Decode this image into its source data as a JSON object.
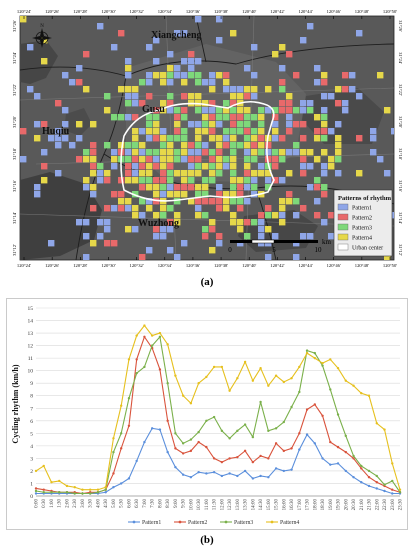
{
  "map": {
    "top_ticks": [
      "120°24'",
      "120°26'",
      "120°28'",
      "120°30'",
      "120°32'",
      "120°34'",
      "120°36'",
      "120°38'",
      "120°40'",
      "120°42'",
      "120°44'",
      "120°46'",
      "120°48'",
      "120°50'"
    ],
    "side_ticks": [
      "31°26'",
      "31°24'",
      "31°22'",
      "31°20'",
      "31°18'",
      "31°16'",
      "31°14'",
      "31°12'"
    ],
    "place_names": {
      "xiangcheng": "Xiangcheng",
      "huqiu": "Huqiu",
      "gusu": "Gusu",
      "wuzhong": "Wuzhong"
    },
    "legend": {
      "title": "Patterns of rhythm",
      "items": [
        {
          "label": "Pattern1",
          "color": "#8fa6e8"
        },
        {
          "label": "Pattern2",
          "color": "#e8696a"
        },
        {
          "label": "Pattern3",
          "color": "#7ed87a"
        },
        {
          "label": "Pattern4",
          "color": "#e6d84a"
        },
        {
          "label": "Urban center",
          "color": "#ffffff"
        }
      ]
    },
    "scalebar": {
      "ticks": [
        "0",
        "5",
        "10"
      ],
      "unit": "km"
    },
    "background_color": "#5b5b5b"
  },
  "panel_labels": {
    "a": "(a)",
    "b": "(b)"
  },
  "chart_data": {
    "type": "line",
    "title": "",
    "xlabel": "",
    "ylabel": "Cycling rhythm (km/h)",
    "ylim": [
      0,
      15
    ],
    "yticks": [
      "0",
      "1",
      "2",
      "3",
      "4",
      "5",
      "6",
      "7",
      "8",
      "9",
      "10",
      "11",
      "12",
      "13",
      "14",
      "15"
    ],
    "grid": true,
    "legend": "bottom",
    "x": [
      "0:00",
      "0:30",
      "1:00",
      "1:30",
      "2:00",
      "2:30",
      "3:00",
      "3:30",
      "4:00",
      "4:30",
      "5:00",
      "5:30",
      "6:00",
      "6:30",
      "7:00",
      "7:30",
      "8:00",
      "8:30",
      "9:00",
      "9:30",
      "10:00",
      "10:30",
      "11:00",
      "11:30",
      "12:00",
      "12:30",
      "13:00",
      "13:30",
      "14:00",
      "14:30",
      "15:00",
      "15:30",
      "16:00",
      "16:30",
      "17:00",
      "17:30",
      "18:00",
      "18:30",
      "19:00",
      "19:30",
      "20:00",
      "20:30",
      "21:00",
      "21:30",
      "22:00",
      "22:30",
      "23:00",
      "23:30"
    ],
    "series": [
      {
        "name": "Pattern1",
        "color": "#5b8fdc",
        "values": [
          0.2,
          0.2,
          0.2,
          0.2,
          0.2,
          0.2,
          0.2,
          0.2,
          0.2,
          0.3,
          0.7,
          1.0,
          1.4,
          2.8,
          4.3,
          5.4,
          5.3,
          3.5,
          2.3,
          1.7,
          1.5,
          1.9,
          1.8,
          1.9,
          1.6,
          1.8,
          1.6,
          2.0,
          1.4,
          1.6,
          1.5,
          2.2,
          2.0,
          2.1,
          3.7,
          4.9,
          4.2,
          3.0,
          2.5,
          2.6,
          2.0,
          1.5,
          1.1,
          0.8,
          0.6,
          0.4,
          0.2,
          0.2
        ]
      },
      {
        "name": "Pattern2",
        "color": "#d9533c",
        "values": [
          0.6,
          0.5,
          0.4,
          0.3,
          0.3,
          0.3,
          0.2,
          0.3,
          0.3,
          0.5,
          1.8,
          3.8,
          5.6,
          10.9,
          12.7,
          11.8,
          10.1,
          6.0,
          3.8,
          3.4,
          3.6,
          4.3,
          3.9,
          3.0,
          2.7,
          3.0,
          3.1,
          3.6,
          2.7,
          3.2,
          3.0,
          4.2,
          3.6,
          3.8,
          5.0,
          6.9,
          7.3,
          6.4,
          4.3,
          3.9,
          3.5,
          3.0,
          2.2,
          1.5,
          1.1,
          0.8,
          0.5,
          0.3
        ]
      },
      {
        "name": "Pattern3",
        "color": "#7ab04a",
        "values": [
          0.4,
          0.3,
          0.3,
          0.3,
          0.3,
          0.2,
          0.2,
          0.2,
          0.3,
          0.5,
          3.5,
          5.0,
          7.8,
          9.8,
          10.3,
          12.0,
          12.7,
          9.0,
          5.0,
          4.2,
          4.5,
          5.1,
          6.0,
          6.3,
          5.2,
          4.6,
          5.2,
          5.7,
          4.7,
          7.5,
          5.2,
          5.4,
          5.9,
          7.1,
          8.3,
          11.6,
          11.4,
          10.4,
          8.5,
          6.5,
          4.8,
          3.2,
          2.4,
          2.0,
          1.6,
          0.9,
          1.2,
          0.3
        ]
      },
      {
        "name": "Pattern4",
        "color": "#e6c01e",
        "values": [
          2.0,
          2.4,
          1.1,
          1.2,
          0.8,
          0.7,
          0.5,
          0.5,
          0.5,
          0.7,
          4.6,
          7.2,
          10.9,
          12.8,
          13.6,
          12.8,
          13.0,
          12.1,
          9.6,
          8.0,
          7.4,
          9.0,
          9.5,
          10.3,
          10.3,
          8.4,
          9.4,
          10.7,
          9.2,
          10.2,
          8.8,
          9.6,
          9.1,
          9.4,
          10.3,
          11.4,
          11.0,
          10.6,
          10.9,
          10.2,
          9.2,
          8.8,
          8.2,
          8.0,
          5.8,
          5.3,
          2.6,
          0.5
        ]
      }
    ]
  }
}
